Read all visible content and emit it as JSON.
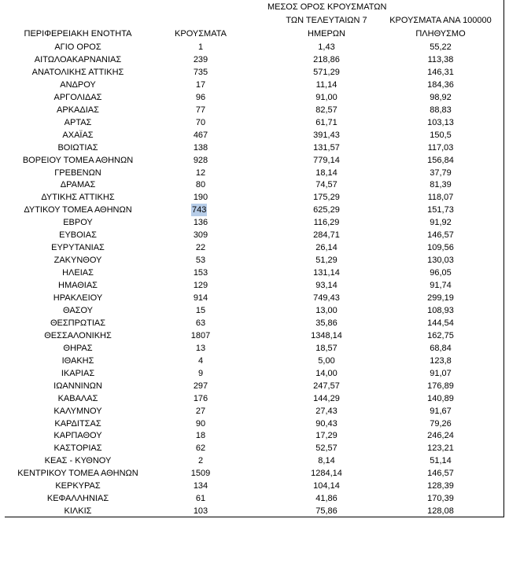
{
  "table": {
    "header": [
      [
        "ΠΕΡΙΦΕΡΕΙΑΚΗ ΕΝΟΤΗΤΑ"
      ],
      [
        "ΚΡΟΥΣΜΑΤΑ"
      ],
      [
        "ΜΕΣΟΣ ΟΡΟΣ ΚΡΟΥΣΜΑΤΩΝ",
        "ΤΩΝ ΤΕΛΕΥΤΑΙΩΝ 7",
        "ΗΜΕΡΩΝ"
      ],
      [
        "ΚΡΟΥΣΜΑΤΑ ΑΝΑ 100000",
        "ΠΛΗΘΥΣΜΟ"
      ]
    ],
    "rows": [
      [
        "ΑΓΙΟ ΟΡΟΣ",
        "1",
        "1,43",
        "55,22"
      ],
      [
        "ΑΙΤΩΛΟΑΚΑΡΝΑΝΙΑΣ",
        "239",
        "218,86",
        "113,38"
      ],
      [
        "ΑΝΑΤΟΛΙΚΗΣ ΑΤΤΙΚΗΣ",
        "735",
        "571,29",
        "146,31"
      ],
      [
        "ΑΝΔΡΟΥ",
        "17",
        "11,14",
        "184,36"
      ],
      [
        "ΑΡΓΟΛΙΔΑΣ",
        "96",
        "91,00",
        "98,92"
      ],
      [
        "ΑΡΚΑΔΙΑΣ",
        "77",
        "82,57",
        "88,83"
      ],
      [
        "ΑΡΤΑΣ",
        "70",
        "61,71",
        "103,13"
      ],
      [
        "ΑΧΑΪΑΣ",
        "467",
        "391,43",
        "150,5"
      ],
      [
        "ΒΟΙΩΤΙΑΣ",
        "138",
        "131,57",
        "117,03"
      ],
      [
        "ΒΟΡΕΙΟΥ ΤΟΜΕΑ ΑΘΗΝΩΝ",
        "928",
        "779,14",
        "156,84"
      ],
      [
        "ΓΡΕΒΕΝΩΝ",
        "12",
        "18,14",
        "37,79"
      ],
      [
        "ΔΡΑΜΑΣ",
        "80",
        "74,57",
        "81,39"
      ],
      [
        "ΔΥΤΙΚΗΣ ΑΤΤΙΚΗΣ",
        "190",
        "175,29",
        "118,07"
      ],
      [
        "ΔΥΤΙΚΟΥ ΤΟΜΕΑ ΑΘΗΝΩΝ",
        "743",
        "625,29",
        "151,73"
      ],
      [
        "ΕΒΡΟΥ",
        "136",
        "116,29",
        "91,92"
      ],
      [
        "ΕΥΒΟΙΑΣ",
        "309",
        "284,71",
        "146,57"
      ],
      [
        "ΕΥΡΥΤΑΝΙΑΣ",
        "22",
        "26,14",
        "109,56"
      ],
      [
        "ΖΑΚΥΝΘΟΥ",
        "53",
        "51,29",
        "130,03"
      ],
      [
        "ΗΛΕΙΑΣ",
        "153",
        "131,14",
        "96,05"
      ],
      [
        "ΗΜΑΘΙΑΣ",
        "129",
        "93,14",
        "91,74"
      ],
      [
        "ΗΡΑΚΛΕΙΟΥ",
        "914",
        "749,43",
        "299,19"
      ],
      [
        "ΘΑΣΟΥ",
        "15",
        "13,00",
        "108,93"
      ],
      [
        "ΘΕΣΠΡΩΤΙΑΣ",
        "63",
        "35,86",
        "144,54"
      ],
      [
        "ΘΕΣΣΑΛΟΝΙΚΗΣ",
        "1807",
        "1348,14",
        "162,75"
      ],
      [
        "ΘΗΡΑΣ",
        "13",
        "18,57",
        "68,84"
      ],
      [
        "ΙΘΑΚΗΣ",
        "4",
        "5,00",
        "123,8"
      ],
      [
        "ΙΚΑΡΙΑΣ",
        "9",
        "14,00",
        "91,07"
      ],
      [
        "ΙΩΑΝΝΙΝΩΝ",
        "297",
        "247,57",
        "176,89"
      ],
      [
        "ΚΑΒΑΛΑΣ",
        "176",
        "144,29",
        "140,89"
      ],
      [
        "ΚΑΛΥΜΝΟΥ",
        "27",
        "27,43",
        "91,67"
      ],
      [
        "ΚΑΡΔΙΤΣΑΣ",
        "90",
        "90,43",
        "79,26"
      ],
      [
        "ΚΑΡΠΑΘΟΥ",
        "18",
        "17,29",
        "246,24"
      ],
      [
        "ΚΑΣΤΟΡΙΑΣ",
        "62",
        "52,57",
        "123,21"
      ],
      [
        "ΚΕΑΣ - ΚΥΘΝΟΥ",
        "2",
        "8,14",
        "51,14"
      ],
      [
        "ΚΕΝΤΡΙΚΟΥ ΤΟΜΕΑ ΑΘΗΝΩΝ",
        "1509",
        "1284,14",
        "146,57"
      ],
      [
        "ΚΕΡΚΥΡΑΣ",
        "134",
        "104,14",
        "128,39"
      ],
      [
        "ΚΕΦΑΛΛΗΝΙΑΣ",
        "61",
        "41,86",
        "170,39"
      ],
      [
        "ΚΙΛΚΙΣ",
        "103",
        "75,86",
        "128,08"
      ]
    ]
  }
}
